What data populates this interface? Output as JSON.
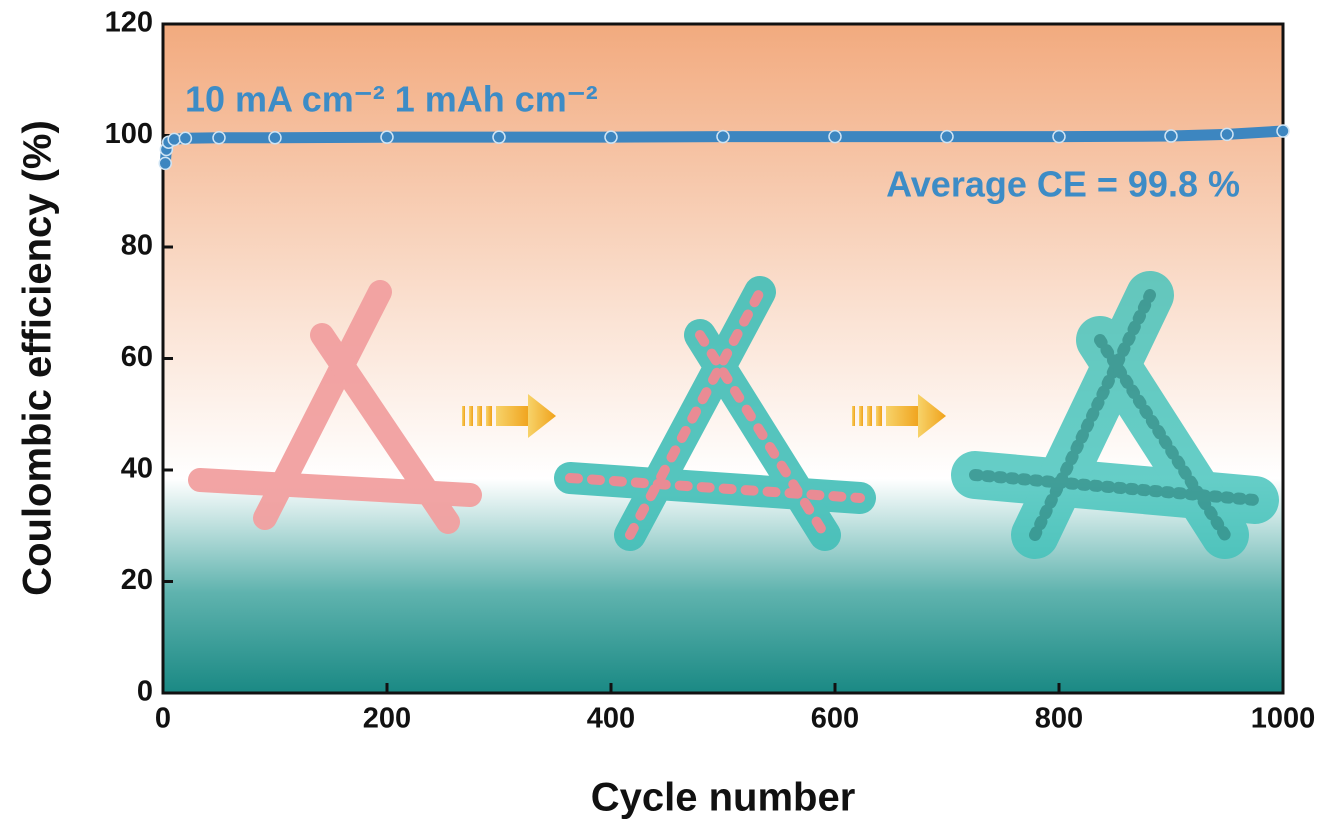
{
  "chart_data": {
    "type": "line",
    "x_label": "Cycle number",
    "y_label": "Coulombic efficiency (%)",
    "annotations": [
      "10 mA cm⁻² 1 mAh cm⁻²",
      "Average CE = 99.8 %"
    ],
    "x": [
      2,
      3,
      5,
      10,
      20,
      50,
      100,
      200,
      300,
      400,
      500,
      600,
      700,
      800,
      900,
      950,
      1000
    ],
    "series": [
      {
        "name": "Coulombic efficiency",
        "color": "#3d86c0",
        "values": [
          95,
          97.5,
          98.8,
          99.3,
          99.5,
          99.6,
          99.6,
          99.7,
          99.7,
          99.7,
          99.8,
          99.8,
          99.8,
          99.8,
          99.9,
          100.2,
          100.8
        ]
      }
    ],
    "xlim": [
      0,
      1000
    ],
    "xticks": [
      0,
      200,
      400,
      600,
      800,
      1000
    ],
    "ylim": [
      0,
      120
    ],
    "yticks": [
      0,
      20,
      40,
      60,
      80,
      100,
      120
    ]
  }
}
